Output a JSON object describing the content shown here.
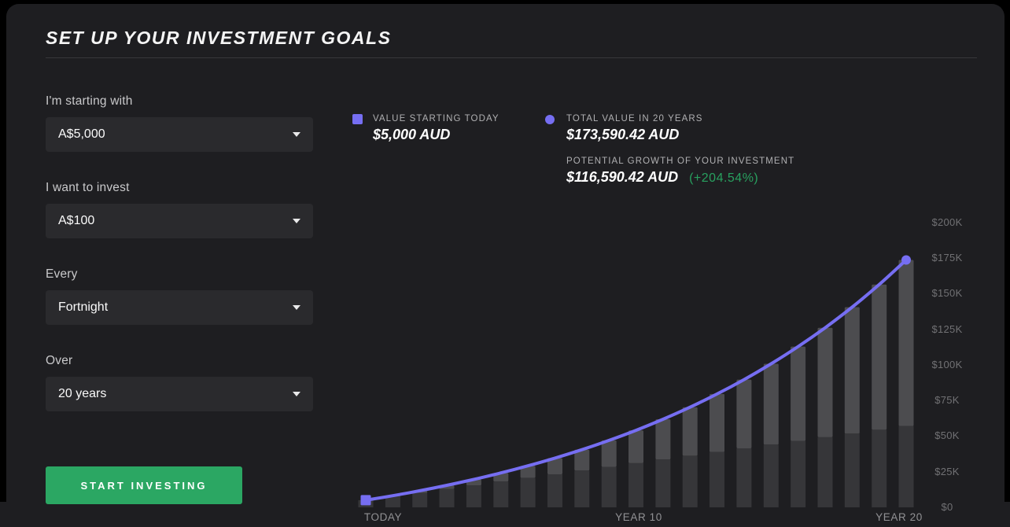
{
  "page": {
    "title": "SET UP YOUR INVESTMENT GOALS"
  },
  "form": {
    "fields": [
      {
        "label": "I'm starting with",
        "value": "A$5,000"
      },
      {
        "label": "I want to invest",
        "value": "A$100"
      },
      {
        "label": "Every",
        "value": "Fortnight"
      },
      {
        "label": "Over",
        "value": "20 years"
      }
    ],
    "submit_label": "START INVESTING"
  },
  "summary": {
    "starting": {
      "label": "VALUE STARTING TODAY",
      "value": "$5,000 AUD"
    },
    "total": {
      "label": "TOTAL VALUE IN 20 YEARS",
      "value": "$173,590.42 AUD"
    },
    "growth": {
      "label": "POTENTIAL GROWTH OF YOUR INVESTMENT",
      "value": "$116,590.42 AUD",
      "pct": "(+204.54%)"
    }
  },
  "colors": {
    "panel": "#1e1e21",
    "accent_purple": "#766ef2",
    "button_green": "#2ba763",
    "pct_green": "#28a05f",
    "bar_growth": "#4c4c4f",
    "bar_contribution": "#363639"
  },
  "chart_data": {
    "type": "bar",
    "bar_style": "stacked",
    "overlay": "line",
    "x": [
      0,
      1,
      2,
      3,
      4,
      5,
      6,
      7,
      8,
      9,
      10,
      11,
      12,
      13,
      14,
      15,
      16,
      17,
      18,
      19,
      20
    ],
    "x_ticks": [
      "TODAY",
      "YEAR 10",
      "YEAR 20"
    ],
    "y_ticks": [
      "$200K",
      "$175K",
      "$150K",
      "$125K",
      "$100K",
      "$75K",
      "$50K",
      "$25K",
      "$0"
    ],
    "ylim": [
      0,
      200000
    ],
    "grid": false,
    "legend_position": "top",
    "series": [
      {
        "name": "contributions",
        "role": "bar-bottom",
        "values": [
          5000,
          7600,
          10200,
          12800,
          15400,
          18000,
          20600,
          23200,
          25800,
          28400,
          31000,
          33600,
          36200,
          38800,
          41400,
          44000,
          46600,
          49200,
          51800,
          54400,
          57000
        ]
      },
      {
        "name": "growth",
        "role": "bar-top",
        "values": [
          0,
          580,
          1457,
          2657,
          4211,
          6152,
          8516,
          11342,
          14674,
          18557,
          23045,
          28193,
          34062,
          40720,
          48241,
          56704,
          66198,
          76817,
          88667,
          101866,
          116590
        ]
      },
      {
        "name": "total_value",
        "role": "line",
        "values": [
          5000,
          8180,
          11657,
          15457,
          19611,
          24152,
          29116,
          34542,
          40474,
          46957,
          54045,
          61793,
          70262,
          79520,
          89641,
          100704,
          112798,
          126017,
          140467,
          156266,
          173590
        ]
      }
    ],
    "annotations": {
      "start_marker": {
        "shape": "square",
        "x": 0,
        "value": 5000
      },
      "end_marker": {
        "shape": "circle",
        "x": 20,
        "value": 173590.42
      }
    }
  }
}
